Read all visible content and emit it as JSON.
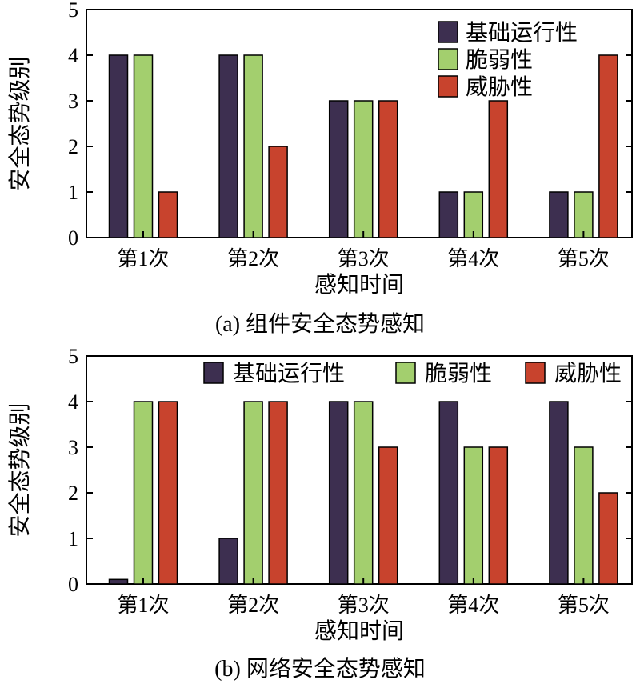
{
  "chart_data": [
    {
      "id": "a",
      "type": "bar",
      "title": "(a) 组件安全态势感知",
      "xlabel": "感知时间",
      "ylabel": "安全态势级别",
      "categories": [
        "第1次",
        "第2次",
        "第3次",
        "第4次",
        "第5次"
      ],
      "ylim": [
        0,
        5
      ],
      "yticks": [
        "0",
        "1",
        "2",
        "3",
        "4",
        "5"
      ],
      "legend_position": "top-right",
      "legend_layout": "vertical",
      "series": [
        {
          "name": "基础运行性",
          "color": "#3d2f50",
          "values": [
            4,
            4,
            3,
            1,
            1
          ]
        },
        {
          "name": "脆弱性",
          "color": "#a3cf6e",
          "values": [
            4,
            4,
            3,
            1,
            1
          ]
        },
        {
          "name": "威胁性",
          "color": "#c8432d",
          "values": [
            1,
            2,
            3,
            3,
            4
          ]
        }
      ]
    },
    {
      "id": "b",
      "type": "bar",
      "title": "(b) 网络安全态势感知",
      "xlabel": "感知时间",
      "ylabel": "安全态势级别",
      "categories": [
        "第1次",
        "第2次",
        "第3次",
        "第4次",
        "第5次"
      ],
      "ylim": [
        0,
        5
      ],
      "yticks": [
        "0",
        "1",
        "2",
        "3",
        "4",
        "5"
      ],
      "legend_position": "top",
      "legend_layout": "horizontal",
      "series": [
        {
          "name": "基础运行性",
          "color": "#3d2f50",
          "values": [
            0.1,
            1,
            4,
            4,
            4
          ]
        },
        {
          "name": "脆弱性",
          "color": "#a3cf6e",
          "values": [
            4,
            4,
            4,
            3,
            3
          ]
        },
        {
          "name": "威胁性",
          "color": "#c8432d",
          "values": [
            4,
            4,
            3,
            3,
            2
          ]
        }
      ]
    }
  ]
}
